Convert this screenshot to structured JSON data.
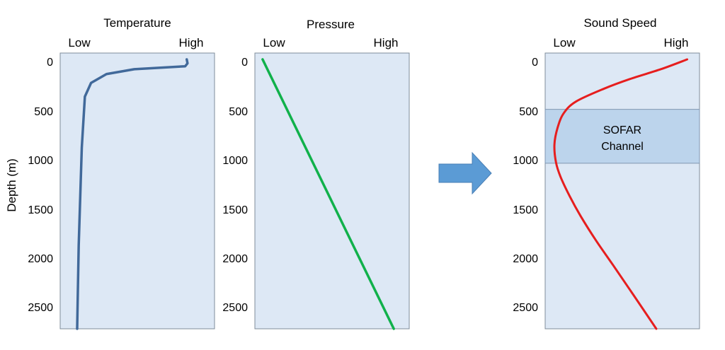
{
  "y_axis_label": "Depth (m)",
  "depth_ticks": [
    "0",
    "500",
    "1000",
    "1500",
    "2000",
    "2500"
  ],
  "colors": {
    "panel_fill": "#dde8f5",
    "panel_stroke": "#7f8c9a",
    "band_fill": "#bcd4ec",
    "band_stroke": "#7f96b0",
    "temperature_line": "#41699a",
    "pressure_line": "#11b14b",
    "sound_speed_line": "#e61e1e",
    "arrow_fill": "#5b9bd5",
    "arrow_stroke": "#4a7fb5"
  },
  "arrow_icon": "right-block-arrow-icon",
  "chart_data": [
    {
      "type": "line",
      "title": "Temperature",
      "x_low_label": "Low",
      "x_high_label": "High",
      "ylim": [
        0,
        2750
      ],
      "series": [
        {
          "x": [
            0.82,
            0.825,
            0.81,
            0.48,
            0.3,
            0.2,
            0.16,
            0.14,
            0.12,
            0.11
          ],
          "y": [
            0,
            40,
            70,
            100,
            150,
            240,
            380,
            900,
            1900,
            2750
          ]
        }
      ]
    },
    {
      "type": "line",
      "title": "Pressure",
      "x_low_label": "Low",
      "x_high_label": "High",
      "ylim": [
        0,
        2750
      ],
      "series": [
        {
          "x": [
            0.05,
            0.9
          ],
          "y": [
            0,
            2750
          ]
        }
      ]
    },
    {
      "type": "line",
      "title": "Sound Speed",
      "x_low_label": "Low",
      "x_high_label": "High",
      "ylim": [
        0,
        2750
      ],
      "band": {
        "y": [
          510,
          1060
        ],
        "label_lines": [
          "SOFAR",
          "Channel"
        ]
      },
      "series": [
        {
          "x": [
            0.92,
            0.75,
            0.55,
            0.38,
            0.2,
            0.12,
            0.08,
            0.06,
            0.07,
            0.1,
            0.16,
            0.23,
            0.33,
            0.44,
            0.57,
            0.72
          ],
          "y": [
            0,
            100,
            200,
            300,
            430,
            550,
            700,
            870,
            1050,
            1200,
            1400,
            1600,
            1850,
            2100,
            2400,
            2750
          ]
        }
      ]
    }
  ]
}
